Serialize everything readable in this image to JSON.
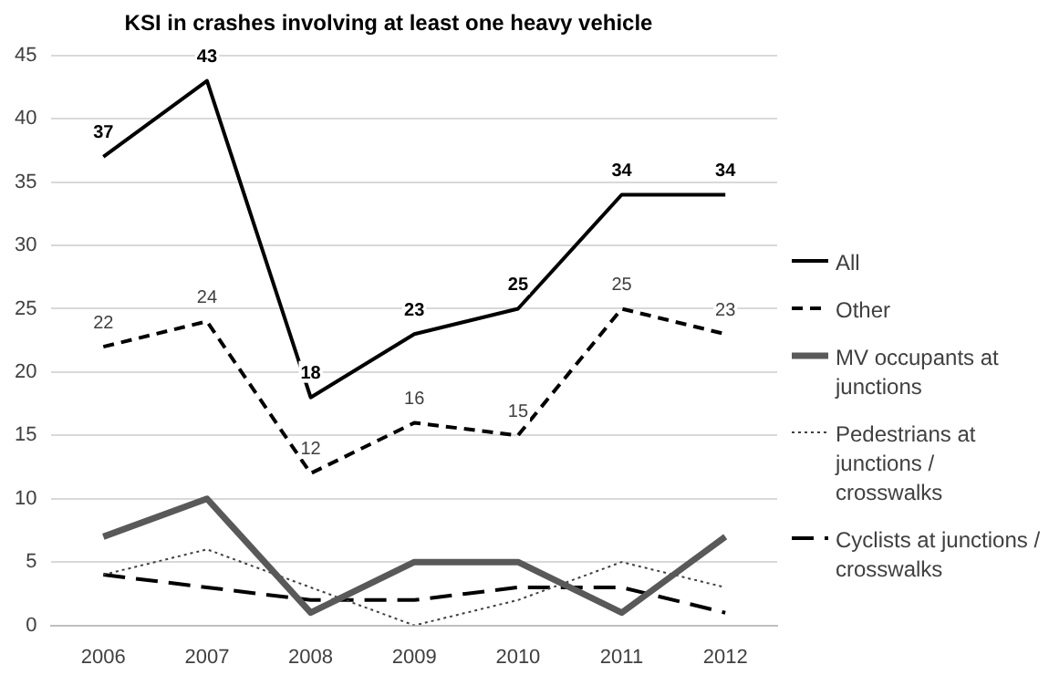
{
  "chart_data": {
    "type": "line",
    "title": "KSI in crashes involving at least one heavy vehicle",
    "categories": [
      "2006",
      "2007",
      "2008",
      "2009",
      "2010",
      "2011",
      "2012"
    ],
    "ylim": [
      0,
      45
    ],
    "yticks": [
      0,
      5,
      10,
      15,
      20,
      25,
      30,
      35,
      40,
      45
    ],
    "grid": "y",
    "legend": "right",
    "marker": "none",
    "series": [
      {
        "name": "All",
        "color": "#000000",
        "line_style": "solid",
        "values": [
          37,
          43,
          18,
          23,
          25,
          34,
          34
        ],
        "value_labels": [
          "37",
          "43",
          "18",
          "23",
          "25",
          "34",
          "34"
        ]
      },
      {
        "name": "Other",
        "color": "#000000",
        "line_style": "dashed",
        "values": [
          22,
          24,
          12,
          16,
          15,
          25,
          23
        ],
        "value_labels": [
          "22",
          "24",
          "12",
          "16",
          "15",
          "25",
          "23"
        ]
      },
      {
        "name": "MV occupants at junctions",
        "color": "#595959",
        "line_style": "solid",
        "values": [
          7,
          10,
          1,
          5,
          5,
          1,
          7
        ]
      },
      {
        "name": "Pedestrians at junctions / crosswalks",
        "color": "#404040",
        "line_style": "dotted",
        "values": [
          4,
          6,
          3,
          0,
          2,
          5,
          3
        ]
      },
      {
        "name": "Cyclists at junctions / crosswalks",
        "color": "#000000",
        "line_style": "dashed",
        "values": [
          4,
          3,
          2,
          2,
          3,
          3,
          1
        ]
      }
    ]
  }
}
